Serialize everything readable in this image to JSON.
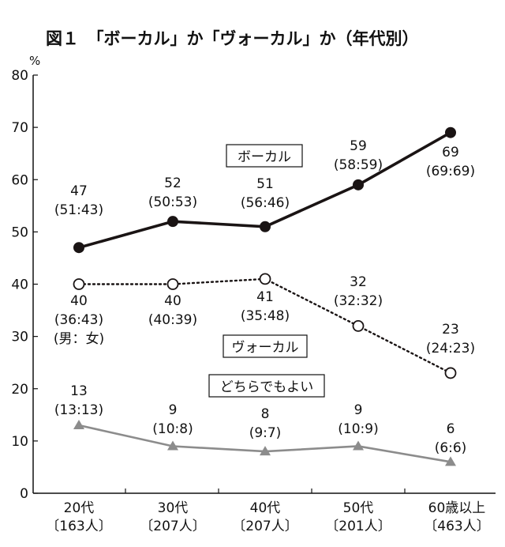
{
  "chart_data": {
    "type": "line",
    "title": "図１　「ボーカル」か「ヴォーカル」か（年代別）",
    "unit": "%",
    "ylim": [
      0,
      80
    ],
    "yticks": [
      0,
      10,
      20,
      30,
      40,
      50,
      60,
      70,
      80
    ],
    "grid": false,
    "categories": [
      {
        "label": "20代",
        "n": "〔163人〕"
      },
      {
        "label": "30代",
        "n": "〔207人〕"
      },
      {
        "label": "40代",
        "n": "〔207人〕"
      },
      {
        "label": "50代",
        "n": "〔201人〕"
      },
      {
        "label": "60歳以上",
        "n": "〔463人〕"
      }
    ],
    "series": [
      {
        "name": "ボーカル",
        "style": "solid-filled-circle",
        "color": "#1a1414",
        "values": [
          47,
          52,
          51,
          59,
          69
        ],
        "value_labels": [
          "47",
          "52",
          "51",
          "59",
          "69"
        ],
        "ratio_labels": [
          "(51:43)",
          "(50:53)",
          "(56:46)",
          "(58:59)",
          "(69:69)"
        ]
      },
      {
        "name": "ヴォーカル",
        "style": "dotted-open-circle",
        "color": "#1a1414",
        "values": [
          40,
          40,
          41,
          32,
          23
        ],
        "value_labels": [
          "40",
          "40",
          "41",
          "32",
          "23"
        ],
        "ratio_labels": [
          "(36:43)",
          "(40:39)",
          "(35:48)",
          "(32:32)",
          "(24:23)"
        ]
      },
      {
        "name": "どちらでもよい",
        "style": "solid-gray-triangle",
        "color": "#8c8c8c",
        "values": [
          13,
          9,
          8,
          9,
          6
        ],
        "value_labels": [
          "13",
          "9",
          "8",
          "9",
          "6"
        ],
        "ratio_labels": [
          "(13:13)",
          "(10:8)",
          "(9:7)",
          "(10:9)",
          "(6:6)"
        ]
      }
    ],
    "annotations": [
      "(男：女)"
    ]
  }
}
